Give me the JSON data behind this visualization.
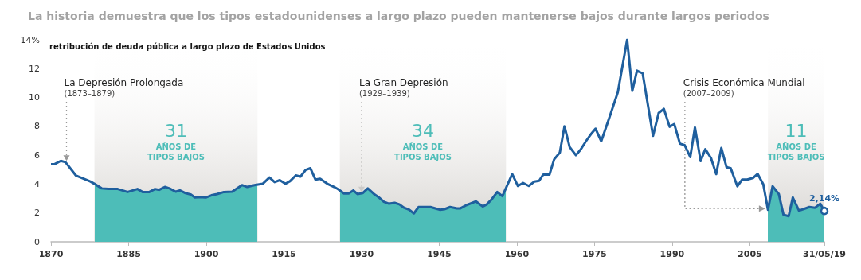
{
  "chart_data": {
    "type": "line",
    "title": "La historia demuestra que los tipos estadounidenses a largo plazo pueden mantenerse bajos durante largos periodos",
    "ylabel": "retribución de deuda pública a largo plazo de Estados Unidos",
    "xlim": [
      1870,
      2019.4
    ],
    "xticks": [
      1870,
      1885,
      1900,
      1915,
      1930,
      1945,
      1960,
      1975,
      1990,
      2005,
      {
        "value": 2019.4,
        "label": "31/05/19"
      }
    ],
    "ylim": [
      0,
      14
    ],
    "yticks": [
      0,
      2,
      4,
      6,
      8,
      10,
      12,
      {
        "value": 14,
        "label": "14%"
      }
    ],
    "grid": false,
    "marker": "none",
    "line_style": "solid",
    "series": [
      {
        "color": "#1f5f9e",
        "x": [
          1870,
          1870.7,
          1871.9,
          1872.8,
          1874.8,
          1877.6,
          1878.4,
          1879.8,
          1881.1,
          1882.9,
          1884.8,
          1886.7,
          1887.7,
          1889,
          1890.1,
          1890.9,
          1892,
          1892.9,
          1894.1,
          1894.9,
          1896,
          1897,
          1897.8,
          1898.9,
          1899.9,
          1901,
          1902.1,
          1903.4,
          1905,
          1906.9,
          1907.9,
          1909.3,
          1910.9,
          1912.2,
          1913.2,
          1914.2,
          1915.3,
          1916.2,
          1917.3,
          1918.2,
          1919.2,
          1920.1,
          1921.1,
          1922,
          1923.4,
          1924.7,
          1925.5,
          1926.6,
          1927.5,
          1928.4,
          1929.2,
          1930.2,
          1931.2,
          1932.4,
          1933.2,
          1934.3,
          1935.3,
          1936.4,
          1937.3,
          1938.2,
          1939.2,
          1940.1,
          1941,
          1943.3,
          1945.2,
          1946,
          1947.1,
          1948.4,
          1949.1,
          1950.3,
          1952.1,
          1953.4,
          1954.2,
          1955.1,
          1956.2,
          1957.2,
          1959.1,
          1960.2,
          1961.2,
          1962.3,
          1963.4,
          1964.3,
          1965.1,
          1966.3,
          1967.2,
          1968.3,
          1969.2,
          1970.2,
          1971.4,
          1972.3,
          1973.4,
          1974.4,
          1975.2,
          1976.3,
          1977.9,
          1979.5,
          1981.3,
          1982.3,
          1983.2,
          1984.3,
          1986.3,
          1987.4,
          1988.4,
          1989.5,
          1990.4,
          1991.5,
          1992.4,
          1993.5,
          1994.4,
          1995.5,
          1996.4,
          1997.5,
          1998.5,
          1999.5,
          2000.5,
          2001.3,
          2002.6,
          2003.5,
          2004.5,
          2005.6,
          2006.5,
          2007.6,
          2008.5,
          2009.4,
          2010.6,
          2011.5,
          2012.5,
          2013.3,
          2014.5,
          2016.5,
          2017.6,
          2018.6,
          2019.4
        ],
        "values": [
          5.38,
          5.38,
          5.61,
          5.52,
          4.6,
          4.18,
          4.02,
          3.7,
          3.66,
          3.66,
          3.45,
          3.66,
          3.45,
          3.45,
          3.66,
          3.6,
          3.8,
          3.7,
          3.47,
          3.56,
          3.37,
          3.28,
          3.07,
          3.1,
          3.07,
          3.22,
          3.31,
          3.45,
          3.47,
          3.93,
          3.8,
          3.93,
          4.02,
          4.46,
          4.14,
          4.27,
          4.02,
          4.21,
          4.6,
          4.52,
          4.98,
          5.1,
          4.31,
          4.37,
          4.02,
          3.8,
          3.64,
          3.35,
          3.35,
          3.56,
          3.31,
          3.37,
          3.7,
          3.31,
          3.12,
          2.78,
          2.64,
          2.7,
          2.6,
          2.36,
          2.22,
          1.97,
          2.41,
          2.41,
          2.22,
          2.26,
          2.41,
          2.32,
          2.32,
          2.55,
          2.8,
          2.45,
          2.6,
          2.93,
          3.45,
          3.16,
          4.69,
          3.87,
          4.08,
          3.87,
          4.18,
          4.23,
          4.66,
          4.66,
          5.71,
          6.19,
          8.0,
          6.57,
          6.0,
          6.38,
          7.0,
          7.5,
          7.84,
          6.97,
          8.64,
          10.36,
          14.0,
          10.46,
          11.86,
          11.67,
          7.34,
          8.93,
          9.21,
          7.97,
          8.16,
          6.8,
          6.7,
          5.88,
          7.93,
          5.6,
          6.42,
          5.8,
          4.69,
          6.5,
          5.17,
          5.1,
          3.85,
          4.31,
          4.31,
          4.42,
          4.71,
          3.98,
          2.22,
          3.85,
          3.31,
          1.88,
          1.78,
          3.07,
          2.16,
          2.41,
          2.36,
          2.64,
          2.14
        ]
      }
    ],
    "bands": [
      {
        "axis": "x",
        "from": 1878.4,
        "to": 1909.9,
        "label": "31\nAÑOS DE\nTIPOS BAJOS",
        "color": "#4dbdb8"
      },
      {
        "axis": "x",
        "from": 1925.8,
        "to": 1957.9,
        "label": "34\nAÑOS DE\nTIPOS BAJOS",
        "color": "#4dbdb8"
      },
      {
        "axis": "x",
        "from": 2008.5,
        "to": 2019.4,
        "label": "11\nAÑOS DE\nTIPOS BAJOS",
        "color": "#4dbdb8"
      }
    ],
    "annotations": [
      {
        "text": "La Depresión Prolongada\n(1873–1879)",
        "x": 1873,
        "y": 5.55
      },
      {
        "text": "La Gran Depresión\n(1929–1939)",
        "x": 1930,
        "y": 3.37
      },
      {
        "text": "Crisis Económica Mundial\n(2007–2009)",
        "x": 2008.3,
        "y": 2.3
      },
      {
        "text": "2,14%",
        "x": 2019.4,
        "y": 2.14
      }
    ]
  }
}
